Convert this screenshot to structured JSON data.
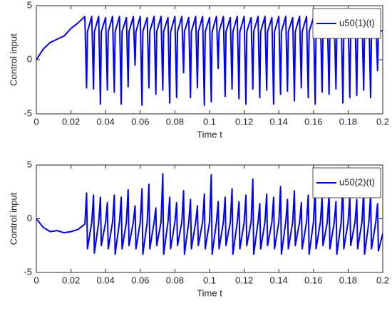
{
  "chart_data": [
    {
      "type": "line",
      "ylabel": "Control input",
      "xlabel": "Time t",
      "xlim": [
        0,
        0.2
      ],
      "ylim": [
        -5,
        5
      ],
      "xticks": [
        0,
        0.02,
        0.04,
        0.06,
        0.08,
        0.1,
        0.12,
        0.14,
        0.16,
        0.18,
        0.2
      ],
      "yticks": [
        -5,
        0,
        5
      ],
      "legend": "upper right",
      "x": [
        0,
        0.004,
        0.008,
        0.012,
        0.016,
        0.02,
        0.024,
        0.028,
        0.029,
        0.0295,
        0.032,
        0.033,
        0.0335,
        0.036,
        0.037,
        0.0375,
        0.04,
        0.041,
        0.0415,
        0.044,
        0.045,
        0.0455,
        0.048,
        0.049,
        0.0495,
        0.052,
        0.053,
        0.0535,
        0.056,
        0.057,
        0.0575,
        0.06,
        0.061,
        0.0615,
        0.064,
        0.065,
        0.0655,
        0.068,
        0.069,
        0.0695,
        0.072,
        0.073,
        0.0735,
        0.076,
        0.077,
        0.0775,
        0.08,
        0.081,
        0.0815,
        0.084,
        0.085,
        0.0855,
        0.088,
        0.089,
        0.0895,
        0.092,
        0.093,
        0.0935,
        0.096,
        0.097,
        0.0975,
        0.1,
        0.101,
        0.1015,
        0.104,
        0.105,
        0.1055,
        0.108,
        0.109,
        0.1095,
        0.112,
        0.113,
        0.1135,
        0.116,
        0.117,
        0.1175,
        0.12,
        0.121,
        0.1215,
        0.124,
        0.125,
        0.1255,
        0.128,
        0.129,
        0.1295,
        0.132,
        0.133,
        0.1335,
        0.136,
        0.137,
        0.1375,
        0.14,
        0.141,
        0.1415,
        0.144,
        0.145,
        0.1455,
        0.148,
        0.149,
        0.1495,
        0.152,
        0.153,
        0.1535,
        0.156,
        0.157,
        0.1575,
        0.16,
        0.161,
        0.1615,
        0.164,
        0.165,
        0.1655,
        0.168,
        0.169,
        0.1695,
        0.172,
        0.173,
        0.1735,
        0.176,
        0.177,
        0.1775,
        0.18,
        0.181,
        0.1815,
        0.184,
        0.185,
        0.1855,
        0.188,
        0.189,
        0.1895,
        0.192,
        0.193,
        0.1935,
        0.196,
        0.197,
        0.1975,
        0.2
      ],
      "series": [
        {
          "name": "u50(1)(t)",
          "color": "#0000ff",
          "values": [
            0,
            1.0,
            1.6,
            1.9,
            2.2,
            2.9,
            3.4,
            4.0,
            -2.6,
            2.6,
            4.0,
            -2.7,
            2.6,
            4.0,
            -4.1,
            2.6,
            3.9,
            -2.8,
            2.6,
            4.0,
            -3.0,
            2.6,
            4.0,
            -4.1,
            2.6,
            3.9,
            -2.5,
            2.6,
            4.0,
            -0.5,
            2.6,
            4.0,
            -4.2,
            2.6,
            3.9,
            -2.6,
            2.6,
            4.0,
            -3.2,
            2.6,
            4.0,
            -2.8,
            2.6,
            3.9,
            -4.0,
            2.6,
            4.0,
            -3.5,
            2.6,
            4.0,
            -1.2,
            2.6,
            3.9,
            -3.5,
            2.6,
            4.0,
            -2.6,
            2.6,
            4.0,
            -4.2,
            2.6,
            3.9,
            -3.9,
            2.6,
            4.0,
            -0.8,
            2.6,
            4.0,
            -3.4,
            2.6,
            3.9,
            -2.7,
            2.6,
            4.0,
            -3.6,
            2.6,
            4.0,
            -4.1,
            2.6,
            3.9,
            -2.7,
            2.6,
            4.0,
            -3.5,
            2.6,
            4.0,
            -2.8,
            2.6,
            3.9,
            -4.1,
            2.6,
            4.0,
            -3.2,
            2.6,
            4.0,
            -2.9,
            2.6,
            3.9,
            -3.8,
            2.6,
            4.0,
            -2.6,
            2.6,
            4.0,
            -3.5,
            2.6,
            3.9,
            -4.1,
            2.6,
            4.0,
            -3.0,
            2.6,
            4.0,
            -3.2,
            2.6,
            3.9,
            -2.7,
            2.6,
            4.0,
            -4.0,
            2.6,
            4.0,
            -3.5,
            2.6,
            3.9,
            -3.3,
            2.6,
            4.0,
            -2.8,
            2.6,
            4.0,
            -3.5,
            2.6,
            3.9,
            -1.0,
            2.6,
            2.7
          ]
        }
      ]
    },
    {
      "type": "line",
      "ylabel": "Control input",
      "xlabel": "Time t",
      "xlim": [
        0,
        0.2
      ],
      "ylim": [
        -5,
        5
      ],
      "xticks": [
        0,
        0.02,
        0.04,
        0.06,
        0.08,
        0.1,
        0.12,
        0.14,
        0.16,
        0.18,
        0.2
      ],
      "yticks": [
        -5,
        0,
        5
      ],
      "legend": "upper right",
      "x": [
        0,
        0.004,
        0.008,
        0.012,
        0.016,
        0.02,
        0.024,
        0.028,
        0.029,
        0.0295,
        0.032,
        0.033,
        0.0335,
        0.036,
        0.037,
        0.0375,
        0.04,
        0.041,
        0.0415,
        0.044,
        0.045,
        0.0455,
        0.048,
        0.049,
        0.0495,
        0.052,
        0.053,
        0.0535,
        0.056,
        0.057,
        0.0575,
        0.06,
        0.061,
        0.0615,
        0.064,
        0.065,
        0.0655,
        0.068,
        0.069,
        0.0695,
        0.072,
        0.073,
        0.0735,
        0.076,
        0.077,
        0.0775,
        0.08,
        0.081,
        0.0815,
        0.084,
        0.085,
        0.0855,
        0.088,
        0.089,
        0.0895,
        0.092,
        0.093,
        0.0935,
        0.096,
        0.097,
        0.0975,
        0.1,
        0.101,
        0.1015,
        0.104,
        0.105,
        0.1055,
        0.108,
        0.109,
        0.1095,
        0.112,
        0.113,
        0.1135,
        0.116,
        0.117,
        0.1175,
        0.12,
        0.121,
        0.1215,
        0.124,
        0.125,
        0.1255,
        0.128,
        0.129,
        0.1295,
        0.132,
        0.133,
        0.1335,
        0.136,
        0.137,
        0.1375,
        0.14,
        0.141,
        0.1415,
        0.144,
        0.145,
        0.1455,
        0.148,
        0.149,
        0.1495,
        0.152,
        0.153,
        0.1535,
        0.156,
        0.157,
        0.1575,
        0.16,
        0.161,
        0.1615,
        0.164,
        0.165,
        0.1655,
        0.168,
        0.169,
        0.1695,
        0.172,
        0.173,
        0.1735,
        0.176,
        0.177,
        0.1775,
        0.18,
        0.181,
        0.1815,
        0.184,
        0.185,
        0.1855,
        0.188,
        0.189,
        0.1895,
        0.192,
        0.193,
        0.1935,
        0.196,
        0.197,
        0.1975,
        0.2
      ],
      "series": [
        {
          "name": "u50(2)(t)",
          "color": "#0000ff",
          "values": [
            0,
            -0.8,
            -1.2,
            -1.1,
            -1.3,
            -1.2,
            -1.0,
            -0.5,
            2.4,
            -2.8,
            -0.3,
            2.2,
            -3.2,
            -0.3,
            2.0,
            -2.5,
            -0.3,
            1.5,
            -2.8,
            -0.3,
            2.2,
            -3.3,
            -0.3,
            2.0,
            -2.8,
            -0.3,
            2.7,
            -2.5,
            -0.3,
            1.2,
            -2.8,
            -0.3,
            2.8,
            -3.3,
            -0.3,
            3.2,
            -2.8,
            -0.3,
            1.0,
            -2.5,
            -0.3,
            4.2,
            -3.3,
            -0.3,
            2.0,
            -2.8,
            -0.3,
            1.5,
            -2.5,
            -0.3,
            2.6,
            -3.3,
            -0.3,
            1.8,
            -2.8,
            -0.3,
            1.2,
            -2.5,
            -0.3,
            2.3,
            -2.8,
            -0.3,
            4.1,
            -3.3,
            -0.3,
            1.6,
            -2.8,
            -0.3,
            2.0,
            -2.5,
            -0.3,
            2.8,
            -3.3,
            -0.3,
            1.6,
            -2.8,
            -0.3,
            2.2,
            -2.5,
            -0.3,
            3.7,
            -3.3,
            -0.3,
            1.4,
            -2.8,
            -0.3,
            2.3,
            -2.5,
            -0.3,
            2.0,
            -2.8,
            -0.3,
            3.0,
            -3.3,
            -0.3,
            1.8,
            -2.8,
            -0.3,
            2.6,
            -2.5,
            -0.3,
            1.5,
            -2.8,
            -0.3,
            2.2,
            -3.3,
            -0.3,
            2.9,
            -2.8,
            -0.3,
            2.0,
            -2.5,
            -0.3,
            2.4,
            -2.8,
            -0.3,
            1.6,
            -3.3,
            -0.3,
            3.3,
            -2.8,
            -0.3,
            2.1,
            -2.5,
            -0.3,
            1.8,
            -2.8,
            -0.3,
            2.6,
            -3.3,
            -0.3,
            2.3,
            -2.8,
            -0.3,
            1.4,
            -3.0,
            -1.4
          ]
        }
      ]
    }
  ]
}
